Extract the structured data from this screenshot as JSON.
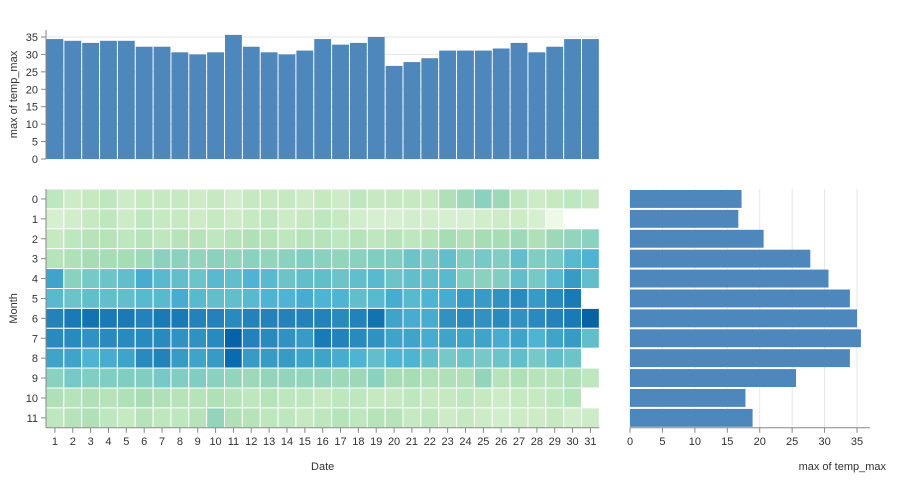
{
  "chart_data": [
    {
      "id": "top",
      "type": "bar",
      "title": "",
      "xlabel": "",
      "ylabel": "max of temp_max",
      "ylim": [
        0,
        37
      ],
      "yticks": [
        0,
        5,
        10,
        15,
        20,
        25,
        30,
        35
      ],
      "grid": true,
      "bar_color": "#4e87bb",
      "categories": [
        "1",
        "2",
        "3",
        "4",
        "5",
        "6",
        "7",
        "8",
        "9",
        "10",
        "11",
        "12",
        "13",
        "14",
        "15",
        "16",
        "17",
        "18",
        "19",
        "20",
        "21",
        "22",
        "23",
        "24",
        "25",
        "26",
        "27",
        "28",
        "29",
        "30",
        "31"
      ],
      "values": [
        34.4,
        33.9,
        33.3,
        33.9,
        33.9,
        32.2,
        32.2,
        30.6,
        30.0,
        30.6,
        35.6,
        32.2,
        30.6,
        30.0,
        31.1,
        34.4,
        32.8,
        33.3,
        35.0,
        26.7,
        27.8,
        28.9,
        31.1,
        31.1,
        31.1,
        31.7,
        33.3,
        30.6,
        32.2,
        34.4,
        34.4
      ]
    },
    {
      "id": "heatmap",
      "type": "heatmap",
      "title": "",
      "xlabel": "Date",
      "ylabel": "Month",
      "x_categories": [
        "1",
        "2",
        "3",
        "4",
        "5",
        "6",
        "7",
        "8",
        "9",
        "10",
        "11",
        "12",
        "13",
        "14",
        "15",
        "16",
        "17",
        "18",
        "19",
        "20",
        "21",
        "22",
        "23",
        "24",
        "25",
        "26",
        "27",
        "28",
        "29",
        "30",
        "31"
      ],
      "y_categories": [
        "0",
        "1",
        "2",
        "3",
        "4",
        "5",
        "6",
        "7",
        "8",
        "9",
        "10",
        "11"
      ],
      "color_domain": [
        0,
        37
      ],
      "color_range": [
        "#f7fcf0",
        "#e0f3db",
        "#ccebc5",
        "#a8ddb5",
        "#7bccc4",
        "#4eb3d3",
        "#2b8cbe",
        "#0868ac",
        "#084081"
      ],
      "values": [
        [
          11,
          9,
          10,
          11,
          9,
          10,
          10,
          10,
          9,
          10,
          8,
          10,
          10,
          10,
          9,
          10,
          9,
          11,
          10,
          10,
          10,
          10,
          13,
          15,
          17,
          15,
          11,
          9,
          10,
          11,
          10
        ],
        [
          7,
          8,
          10,
          11,
          9,
          11,
          10,
          10,
          9,
          10,
          9,
          10,
          11,
          9,
          10,
          11,
          10,
          8,
          7,
          7,
          8,
          8,
          7,
          7,
          8,
          9,
          9,
          7,
          2,
          null,
          null
        ],
        [
          10,
          11,
          12,
          12,
          11,
          12,
          11,
          12,
          12,
          11,
          12,
          13,
          12,
          11,
          12,
          12,
          11,
          12,
          11,
          12,
          11,
          12,
          14,
          13,
          14,
          14,
          15,
          13,
          15,
          16,
          17
        ],
        [
          12,
          13,
          14,
          14,
          14,
          15,
          17,
          17,
          16,
          17,
          16,
          17,
          16,
          17,
          18,
          17,
          16,
          17,
          18,
          18,
          20,
          19,
          21,
          18,
          19,
          18,
          21,
          18,
          19,
          22,
          23
        ],
        [
          25,
          17,
          19,
          20,
          21,
          24,
          22,
          21,
          20,
          22,
          21,
          23,
          22,
          20,
          21,
          21,
          20,
          21,
          22,
          20,
          21,
          21,
          22,
          18,
          17,
          18,
          21,
          19,
          22,
          26,
          21
        ],
        [
          22,
          20,
          21,
          21,
          21,
          22,
          22,
          24,
          22,
          21,
          21,
          22,
          23,
          23,
          24,
          23,
          23,
          21,
          22,
          24,
          22,
          23,
          24,
          26,
          26,
          27,
          28,
          26,
          28,
          30,
          null
        ],
        [
          29,
          30,
          31,
          30,
          30,
          29,
          30,
          30,
          29,
          29,
          28,
          29,
          29,
          29,
          29,
          29,
          28,
          29,
          31,
          25,
          24,
          24,
          27,
          28,
          27,
          28,
          27,
          28,
          29,
          30,
          33
        ],
        [
          28,
          28,
          27,
          28,
          28,
          28,
          28,
          27,
          27,
          28,
          33,
          29,
          28,
          27,
          26,
          30,
          29,
          28,
          27,
          25,
          25,
          24,
          25,
          25,
          25,
          24,
          25,
          23,
          25,
          26,
          21
        ],
        [
          25,
          25,
          23,
          24,
          25,
          28,
          29,
          26,
          25,
          26,
          32,
          26,
          26,
          26,
          25,
          25,
          24,
          23,
          21,
          23,
          23,
          21,
          19,
          20,
          19,
          20,
          21,
          19,
          21,
          20,
          null
        ],
        [
          17,
          19,
          18,
          18,
          18,
          18,
          19,
          18,
          18,
          17,
          16,
          15,
          16,
          16,
          16,
          16,
          15,
          15,
          17,
          14,
          14,
          13,
          13,
          13,
          16,
          12,
          13,
          12,
          12,
          13,
          11
        ],
        [
          13,
          12,
          13,
          12,
          13,
          14,
          13,
          12,
          12,
          13,
          12,
          11,
          12,
          11,
          11,
          10,
          11,
          11,
          10,
          10,
          11,
          10,
          10,
          11,
          10,
          9,
          10,
          10,
          11,
          12,
          null
        ],
        [
          11,
          12,
          13,
          11,
          10,
          12,
          11,
          11,
          12,
          16,
          13,
          12,
          11,
          11,
          10,
          11,
          12,
          11,
          12,
          12,
          10,
          11,
          9,
          10,
          9,
          8,
          9,
          9,
          10,
          8,
          9
        ]
      ]
    },
    {
      "id": "right",
      "type": "bar",
      "orientation": "horizontal",
      "title": "",
      "xlabel": "max of temp_max",
      "ylabel": "",
      "xlim": [
        0,
        37
      ],
      "xticks": [
        0,
        5,
        10,
        15,
        20,
        25,
        30,
        35
      ],
      "grid": true,
      "bar_color": "#4e87bb",
      "categories": [
        "0",
        "1",
        "2",
        "3",
        "4",
        "5",
        "6",
        "7",
        "8",
        "9",
        "10",
        "11"
      ],
      "values": [
        17.2,
        16.7,
        20.6,
        27.8,
        30.6,
        33.9,
        35.0,
        35.6,
        33.9,
        25.6,
        17.8,
        18.9
      ]
    }
  ]
}
